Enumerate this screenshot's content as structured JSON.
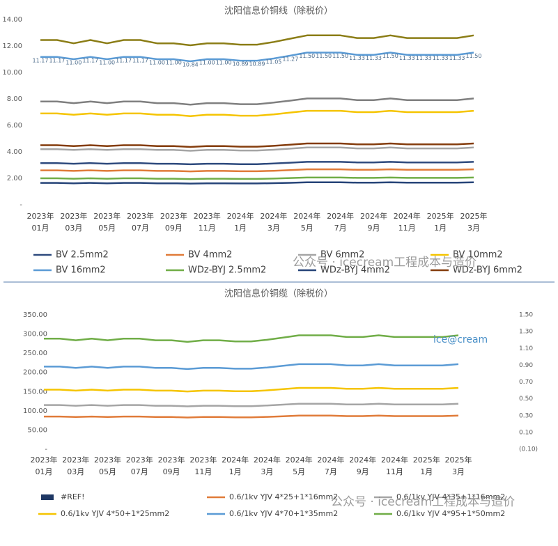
{
  "watermark": "公众号 · icecream工程成本与造价",
  "chart_data": [
    {
      "type": "line",
      "title": "沈阳信息价铜线（除税价）",
      "categories": [
        "2023年\n01月",
        null,
        "2023年\n03月",
        null,
        "2023年\n05月",
        null,
        "2023年\n07月",
        null,
        "2023年\n09月",
        null,
        "2023年\n11月",
        null,
        "2024年\n1月",
        null,
        "2024年\n3月",
        null,
        "2024年\n5月",
        null,
        "2024年\n7月",
        null,
        "2024年\n9月",
        null,
        "2024年\n11月",
        null,
        "2025年\n1月",
        null,
        "2025年\n3月"
      ],
      "ylim": [
        0,
        14
      ],
      "yticks": [
        {
          "value": 0,
          "label": "-"
        },
        {
          "value": 2,
          "label": "2.00"
        },
        {
          "value": 4,
          "label": "4.00"
        },
        {
          "value": 6,
          "label": "6.00"
        },
        {
          "value": 8,
          "label": "8.00"
        },
        {
          "value": 10,
          "label": "10.00"
        },
        {
          "value": 12,
          "label": "12.00"
        },
        {
          "value": 14,
          "label": "14.00"
        }
      ],
      "grid": false,
      "series": [
        {
          "name": "BV 2.5mm2",
          "color": "#2e4a7d",
          "values": [
            3.15,
            3.15,
            3.1,
            3.15,
            3.1,
            3.15,
            3.15,
            3.1,
            3.1,
            3.06,
            3.1,
            3.1,
            3.07,
            3.07,
            3.12,
            3.18,
            3.24,
            3.24,
            3.24,
            3.2,
            3.2,
            3.24,
            3.2,
            3.2,
            3.2,
            3.2,
            3.24
          ]
        },
        {
          "name": "BV 4mm2",
          "color": "#e07b39",
          "values": [
            2.6,
            2.6,
            2.56,
            2.6,
            2.56,
            2.6,
            2.6,
            2.56,
            2.56,
            2.52,
            2.56,
            2.56,
            2.53,
            2.53,
            2.57,
            2.62,
            2.68,
            2.68,
            2.68,
            2.64,
            2.64,
            2.68,
            2.64,
            2.64,
            2.64,
            2.64,
            2.68
          ]
        },
        {
          "name": "BV 6mm2",
          "color": "#a5a5a5",
          "values": [
            4.2,
            4.2,
            4.14,
            4.2,
            4.14,
            4.2,
            4.2,
            4.14,
            4.14,
            4.08,
            4.14,
            4.14,
            4.1,
            4.1,
            4.16,
            4.24,
            4.33,
            4.33,
            4.33,
            4.26,
            4.26,
            4.33,
            4.26,
            4.26,
            4.26,
            4.26,
            4.33
          ]
        },
        {
          "name": "BV 10mm2",
          "color": "#f5c400",
          "values": [
            6.9,
            6.9,
            6.8,
            6.9,
            6.8,
            6.9,
            6.9,
            6.8,
            6.8,
            6.7,
            6.8,
            6.8,
            6.73,
            6.73,
            6.83,
            6.97,
            7.1,
            7.1,
            7.1,
            7.0,
            7.0,
            7.1,
            7.0,
            7.0,
            7.0,
            7.0,
            7.1
          ]
        },
        {
          "name": "BV 16mm2",
          "color": "#5b9bd5",
          "values": [
            11.17,
            11.17,
            11.0,
            11.17,
            11.0,
            11.17,
            11.17,
            11.0,
            11.0,
            10.84,
            11.0,
            11.0,
            10.89,
            10.89,
            11.05,
            11.27,
            11.5,
            11.5,
            11.5,
            11.33,
            11.33,
            11.5,
            11.33,
            11.33,
            11.33,
            11.33,
            11.5
          ],
          "value_labels": [
            "11.17",
            "11.17",
            "11.00",
            "11.17",
            "11.00",
            "11.17",
            "11.17",
            "11.00",
            "11.00",
            "10.84",
            "11.00",
            "11.00",
            "10.89",
            "10.89",
            "11.05",
            "11.27",
            "11.50",
            "11.50",
            "11.50",
            "11.33",
            "11.33",
            "11.50",
            "11.33",
            "11.33",
            "11.33",
            "11.33",
            "11.50"
          ]
        },
        {
          "name": "WDz-BYJ 2.5mm2",
          "color": "#70ad47",
          "values": [
            2.0,
            2.0,
            1.97,
            2.0,
            1.97,
            2.0,
            2.0,
            1.97,
            1.97,
            1.94,
            1.97,
            1.97,
            1.95,
            1.95,
            1.98,
            2.02,
            2.06,
            2.06,
            2.06,
            2.03,
            2.03,
            2.06,
            2.03,
            2.03,
            2.03,
            2.03,
            2.06
          ]
        },
        {
          "name": "WDz-BYJ 4mm2",
          "color": "#264478",
          "values": [
            1.65,
            1.65,
            1.62,
            1.65,
            1.62,
            1.65,
            1.65,
            1.62,
            1.62,
            1.6,
            1.62,
            1.62,
            1.61,
            1.61,
            1.63,
            1.66,
            1.7,
            1.7,
            1.7,
            1.67,
            1.67,
            1.7,
            1.67,
            1.67,
            1.67,
            1.67,
            1.7
          ]
        },
        {
          "name": "WDz-BYJ 6mm2",
          "color": "#843c0c",
          "values": [
            4.5,
            4.5,
            4.43,
            4.5,
            4.43,
            4.5,
            4.5,
            4.43,
            4.43,
            4.37,
            4.43,
            4.43,
            4.39,
            4.39,
            4.45,
            4.54,
            4.63,
            4.63,
            4.63,
            4.57,
            4.57,
            4.63,
            4.57,
            4.57,
            4.57,
            4.57,
            4.63
          ]
        },
        {
          "color": "#7f7f7f",
          "values": [
            7.8,
            7.8,
            7.68,
            7.8,
            7.68,
            7.8,
            7.8,
            7.68,
            7.68,
            7.57,
            7.68,
            7.68,
            7.6,
            7.6,
            7.72,
            7.87,
            8.03,
            8.03,
            8.03,
            7.91,
            7.91,
            8.03,
            7.91,
            7.91,
            7.91,
            7.91,
            8.03
          ]
        },
        {
          "color": "#8b7d16",
          "values": [
            12.45,
            12.45,
            12.2,
            12.45,
            12.2,
            12.45,
            12.45,
            12.2,
            12.2,
            12.05,
            12.2,
            12.2,
            12.1,
            12.1,
            12.3,
            12.55,
            12.8,
            12.8,
            12.8,
            12.6,
            12.6,
            12.8,
            12.6,
            12.6,
            12.6,
            12.6,
            12.8
          ]
        }
      ]
    },
    {
      "type": "line",
      "title": "沈阳信息价铜缆（除税价）",
      "categories": [
        "2023年\n01月",
        null,
        "2023年\n03月",
        null,
        "2023年\n05月",
        null,
        "2023年\n07月",
        null,
        "2023年\n09月",
        null,
        "2023年\n11月",
        null,
        "2024年\n1月",
        null,
        "2024年\n3月",
        null,
        "2024年\n5月",
        null,
        "2024年\n7月",
        null,
        "2024年\n9月",
        null,
        "2024年\n11月",
        null,
        "2025年\n1月",
        null,
        "2025年\n3月"
      ],
      "ylim": [
        0,
        350
      ],
      "yticks": [
        {
          "value": 0,
          "label": "-"
        },
        {
          "value": 50,
          "label": "50.00"
        },
        {
          "value": 100,
          "label": "100.00"
        },
        {
          "value": 150,
          "label": "150.00"
        },
        {
          "value": 200,
          "label": "200.00"
        },
        {
          "value": 250,
          "label": "250.00"
        },
        {
          "value": 300,
          "label": "300.00"
        },
        {
          "value": 350,
          "label": "350.00"
        }
      ],
      "y2lim": [
        -0.1,
        1.5
      ],
      "y2ticks": [
        {
          "value": -0.1,
          "label": "(0.10)"
        },
        {
          "value": 0.1,
          "label": "0.10"
        },
        {
          "value": 0.3,
          "label": "0.30"
        },
        {
          "value": 0.5,
          "label": "0.50"
        },
        {
          "value": 0.7,
          "label": "0.70"
        },
        {
          "value": 0.9,
          "label": "0.90"
        },
        {
          "value": 1.1,
          "label": "1.10"
        },
        {
          "value": 1.3,
          "label": "1.30"
        },
        {
          "value": 1.5,
          "label": "1.50"
        }
      ],
      "grid": false,
      "annotation": "ice@cream",
      "series": [
        {
          "name": "#REF!",
          "color": "#1f3864",
          "axis": "y2",
          "values": [
            null,
            null,
            null,
            null,
            null,
            null,
            null,
            null,
            null,
            null,
            null,
            null,
            null,
            null,
            null,
            null,
            null,
            null,
            null,
            null,
            null,
            null,
            null,
            null,
            null,
            null,
            null
          ]
        },
        {
          "name": "0.6/1kv YJV 4*25+1*16mm2",
          "color": "#e07b39",
          "values": [
            85,
            85,
            83.7,
            85,
            83.7,
            85,
            85,
            83.7,
            83.7,
            82.5,
            83.7,
            83.7,
            82.9,
            82.9,
            84.1,
            85.8,
            87.5,
            87.5,
            87.5,
            86.2,
            86.2,
            87.5,
            86.2,
            86.2,
            86.2,
            86.2,
            87.5
          ]
        },
        {
          "name": "0.6/1kv YJV 4*35+1*16mm2",
          "color": "#a5a5a5",
          "values": [
            115,
            115,
            113.2,
            115,
            113.2,
            115,
            115,
            113.2,
            113.2,
            111.6,
            113.2,
            113.2,
            112.1,
            112.1,
            113.8,
            116,
            118.4,
            118.4,
            118.4,
            116.6,
            116.6,
            118.4,
            116.6,
            116.6,
            116.6,
            116.6,
            118.4
          ]
        },
        {
          "name": "0.6/1kv YJV 4*50+1*25mm2",
          "color": "#f5c400",
          "values": [
            155,
            155,
            152.6,
            155,
            152.6,
            155,
            155,
            152.6,
            152.6,
            150.4,
            152.6,
            152.6,
            151.1,
            151.1,
            153.3,
            156.4,
            159.6,
            159.6,
            159.6,
            157.2,
            157.2,
            159.6,
            157.2,
            157.2,
            157.2,
            157.2,
            159.6
          ]
        },
        {
          "name": "0.6/1kv YJV 4*70+1*35mm2",
          "color": "#5b9bd5",
          "values": [
            215,
            215,
            211.7,
            215,
            211.7,
            215,
            215,
            211.7,
            211.7,
            208.7,
            211.7,
            211.7,
            209.6,
            209.6,
            212.7,
            217,
            221.4,
            221.4,
            221.4,
            218.1,
            218.1,
            221.4,
            218.1,
            218.1,
            218.1,
            218.1,
            221.4
          ]
        },
        {
          "name": "0.6/1kv YJV 4*95+1*50mm2",
          "color": "#70ad47",
          "values": [
            288,
            288,
            283.6,
            288,
            283.6,
            288,
            288,
            283.6,
            283.6,
            279.5,
            283.6,
            283.6,
            280.8,
            280.8,
            284.9,
            290.6,
            296.5,
            296.5,
            296.5,
            292.1,
            292.1,
            296.5,
            292.1,
            292.1,
            292.1,
            292.1,
            296.5
          ]
        }
      ]
    }
  ]
}
